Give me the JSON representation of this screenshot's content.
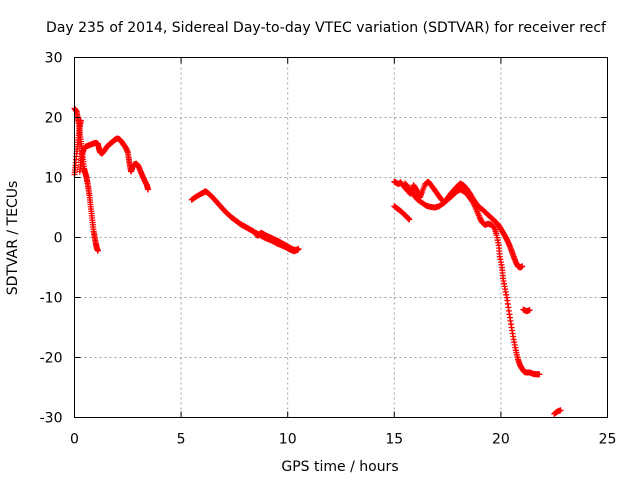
{
  "chart_data": {
    "type": "scatter",
    "title": "Day 235 of 2014, Sidereal Day-to-day VTEC variation (SDTVAR) for receiver recf",
    "xlabel": "GPS time / hours",
    "ylabel": "SDTVAR / TECUs",
    "xlim": [
      0,
      25
    ],
    "ylim": [
      -30,
      30
    ],
    "xticks": [
      0,
      5,
      10,
      15,
      20,
      25
    ],
    "yticks": [
      -30,
      -20,
      -10,
      0,
      10,
      20,
      30
    ],
    "grid": true,
    "marker": "+",
    "series": [
      {
        "name": "SDTVAR",
        "color": "#ff0000",
        "segments": [
          [
            [
              0,
              21.5
            ],
            [
              0.1,
              21
            ],
            [
              0.15,
              20
            ],
            [
              0.2,
              19
            ],
            [
              0.25,
              17.5
            ],
            [
              0.3,
              16
            ],
            [
              0.35,
              14.5
            ],
            [
              0.4,
              13
            ],
            [
              0.45,
              11.5
            ],
            [
              0.5,
              10.8
            ],
            [
              0.55,
              10.2
            ],
            [
              0.6,
              9.3
            ],
            [
              0.65,
              8.2
            ],
            [
              0.7,
              7
            ],
            [
              0.75,
              5.5
            ],
            [
              0.8,
              4
            ],
            [
              0.85,
              2.5
            ],
            [
              0.9,
              1
            ],
            [
              0.95,
              0
            ],
            [
              1,
              -1
            ],
            [
              1.05,
              -1.8
            ],
            [
              1.1,
              -2.2
            ]
          ],
          [
            [
              0,
              10.5
            ],
            [
              0.05,
              12
            ],
            [
              0.1,
              14
            ],
            [
              0.15,
              15.5
            ],
            [
              0.2,
              17
            ],
            [
              0.25,
              18.5
            ],
            [
              0.3,
              19.5
            ]
          ],
          [
            [
              0.25,
              11
            ],
            [
              0.3,
              12.5
            ],
            [
              0.35,
              13.8
            ],
            [
              0.45,
              14.8
            ],
            [
              0.55,
              15.2
            ],
            [
              0.7,
              15.4
            ],
            [
              0.85,
              15.6
            ],
            [
              1,
              15.8
            ],
            [
              1.1,
              15.6
            ],
            [
              1.15,
              14.8
            ],
            [
              1.2,
              14.2
            ],
            [
              1.3,
              14
            ],
            [
              1.4,
              14.5
            ],
            [
              1.5,
              15
            ],
            [
              1.6,
              15.4
            ],
            [
              1.7,
              15.7
            ],
            [
              1.8,
              16
            ],
            [
              1.9,
              16.3
            ],
            [
              2,
              16.5
            ],
            [
              2.1,
              16.4
            ],
            [
              2.2,
              16
            ],
            [
              2.3,
              15.5
            ],
            [
              2.4,
              15
            ],
            [
              2.5,
              14.2
            ],
            [
              2.55,
              13
            ],
            [
              2.6,
              12
            ],
            [
              2.65,
              11
            ],
            [
              2.7,
              11.5
            ],
            [
              2.8,
              12.2
            ],
            [
              2.9,
              12.3
            ],
            [
              3,
              11.9
            ],
            [
              3.1,
              11
            ],
            [
              3.2,
              10.2
            ],
            [
              3.3,
              9.4
            ],
            [
              3.4,
              8.7
            ],
            [
              3.45,
              8
            ]
          ],
          [
            [
              5.5,
              6.3
            ],
            [
              5.7,
              6.8
            ],
            [
              5.9,
              7.2
            ],
            [
              6.05,
              7.5
            ],
            [
              6.15,
              7.7
            ],
            [
              6.3,
              7.3
            ],
            [
              6.45,
              6.8
            ],
            [
              6.6,
              6.2
            ],
            [
              6.75,
              5.6
            ],
            [
              6.9,
              5
            ],
            [
              7.05,
              4.4
            ],
            [
              7.2,
              3.9
            ],
            [
              7.35,
              3.4
            ],
            [
              7.5,
              3
            ],
            [
              7.65,
              2.6
            ],
            [
              7.8,
              2.2
            ],
            [
              7.95,
              1.9
            ],
            [
              8.1,
              1.6
            ],
            [
              8.25,
              1.3
            ],
            [
              8.4,
              1
            ],
            [
              8.5,
              0.6
            ],
            [
              8.6,
              0.3
            ],
            [
              8.75,
              0.8
            ],
            [
              8.9,
              0.5
            ],
            [
              9.05,
              0.2
            ],
            [
              9.2,
              0
            ],
            [
              9.35,
              -0.3
            ],
            [
              9.5,
              -0.5
            ],
            [
              9.65,
              -0.8
            ],
            [
              9.8,
              -1.1
            ],
            [
              9.95,
              -1.4
            ],
            [
              10.1,
              -1.7
            ],
            [
              10.25,
              -2
            ],
            [
              10.4,
              -2.1
            ],
            [
              10.5,
              -1.9
            ]
          ],
          [
            [
              8.5,
              0.8
            ],
            [
              8.7,
              0.4
            ],
            [
              8.9,
              0
            ],
            [
              9.1,
              -0.3
            ],
            [
              9.3,
              -0.6
            ],
            [
              9.5,
              -1
            ],
            [
              9.7,
              -1.3
            ],
            [
              9.9,
              -1.6
            ],
            [
              10.1,
              -2
            ],
            [
              10.3,
              -2.3
            ],
            [
              10.5,
              -2
            ]
          ],
          [
            [
              15,
              9.3
            ],
            [
              15.1,
              9.1
            ],
            [
              15.2,
              8.9
            ],
            [
              15.3,
              9.2
            ],
            [
              15.45,
              8.5
            ],
            [
              15.6,
              7.9
            ],
            [
              15.75,
              7.3
            ],
            [
              15.9,
              8.7
            ],
            [
              16,
              8.2
            ],
            [
              16.1,
              7.4
            ],
            [
              16.2,
              6.7
            ],
            [
              16.3,
              7.6
            ],
            [
              16.45,
              8.9
            ],
            [
              16.6,
              9.3
            ],
            [
              16.75,
              8.6
            ],
            [
              16.9,
              7.9
            ],
            [
              17.05,
              7.1
            ],
            [
              17.2,
              6.4
            ],
            [
              17.35,
              5.8
            ],
            [
              17.5,
              6.6
            ],
            [
              17.65,
              7.3
            ],
            [
              17.8,
              7.9
            ],
            [
              17.95,
              8.5
            ],
            [
              18.1,
              9
            ],
            [
              18.25,
              8.7
            ],
            [
              18.4,
              8.1
            ],
            [
              18.55,
              7.3
            ],
            [
              18.7,
              6.4
            ],
            [
              18.85,
              5.6
            ],
            [
              19,
              5
            ],
            [
              19.15,
              4.6
            ],
            [
              19.3,
              4.1
            ],
            [
              19.45,
              3.6
            ],
            [
              19.6,
              3.1
            ],
            [
              19.75,
              2.6
            ],
            [
              19.9,
              2
            ],
            [
              20,
              1.4
            ],
            [
              20.1,
              0.8
            ],
            [
              20.2,
              0.2
            ],
            [
              20.3,
              -0.5
            ],
            [
              20.4,
              -1.3
            ],
            [
              20.5,
              -2.2
            ],
            [
              20.6,
              -3.2
            ],
            [
              20.7,
              -4.1
            ],
            [
              20.8,
              -4.8
            ],
            [
              20.9,
              -5
            ],
            [
              21,
              -4.8
            ]
          ],
          [
            [
              15,
              5.2
            ],
            [
              15.15,
              4.8
            ],
            [
              15.3,
              4.4
            ],
            [
              15.45,
              3.9
            ],
            [
              15.6,
              3.4
            ],
            [
              15.7,
              3
            ]
          ],
          [
            [
              15.5,
              9
            ],
            [
              15.65,
              8.4
            ],
            [
              15.8,
              7.6
            ],
            [
              15.95,
              6.9
            ],
            [
              16.1,
              6.3
            ],
            [
              16.3,
              5.8
            ],
            [
              16.5,
              5.3
            ],
            [
              16.7,
              5.1
            ],
            [
              16.9,
              5
            ],
            [
              17.1,
              5.2
            ],
            [
              17.3,
              5.7
            ],
            [
              17.5,
              6.3
            ],
            [
              17.7,
              6.9
            ],
            [
              17.9,
              7.6
            ],
            [
              18.1,
              8
            ],
            [
              18.3,
              7.6
            ],
            [
              18.5,
              6.8
            ],
            [
              18.7,
              5.8
            ],
            [
              18.85,
              4.6
            ],
            [
              19,
              3.4
            ],
            [
              19.1,
              2.6
            ],
            [
              19.25,
              2.1
            ],
            [
              19.4,
              2.3
            ],
            [
              19.55,
              2.1
            ],
            [
              19.7,
              1.6
            ],
            [
              19.8,
              0.4
            ],
            [
              19.9,
              -1.3
            ],
            [
              19.95,
              -3.2
            ],
            [
              20.05,
              -5
            ],
            [
              20.1,
              -6.8
            ],
            [
              20.2,
              -8.6
            ],
            [
              20.3,
              -10.5
            ],
            [
              20.4,
              -12.8
            ],
            [
              20.5,
              -15
            ],
            [
              20.6,
              -17
            ],
            [
              20.7,
              -18.8
            ],
            [
              20.8,
              -20.3
            ],
            [
              20.9,
              -21.3
            ],
            [
              21,
              -21.9
            ],
            [
              21.1,
              -22.4
            ],
            [
              21.2,
              -22.5
            ],
            [
              21.35,
              -22.5
            ],
            [
              21.5,
              -22.7
            ],
            [
              21.65,
              -22.8
            ],
            [
              21.8,
              -22.8
            ]
          ],
          [
            [
              21.05,
              -12
            ],
            [
              21.2,
              -12.3
            ],
            [
              21.35,
              -12.1
            ]
          ],
          [
            [
              22.5,
              -29.4
            ],
            [
              22.65,
              -29
            ],
            [
              22.8,
              -28.8
            ]
          ]
        ]
      }
    ]
  }
}
